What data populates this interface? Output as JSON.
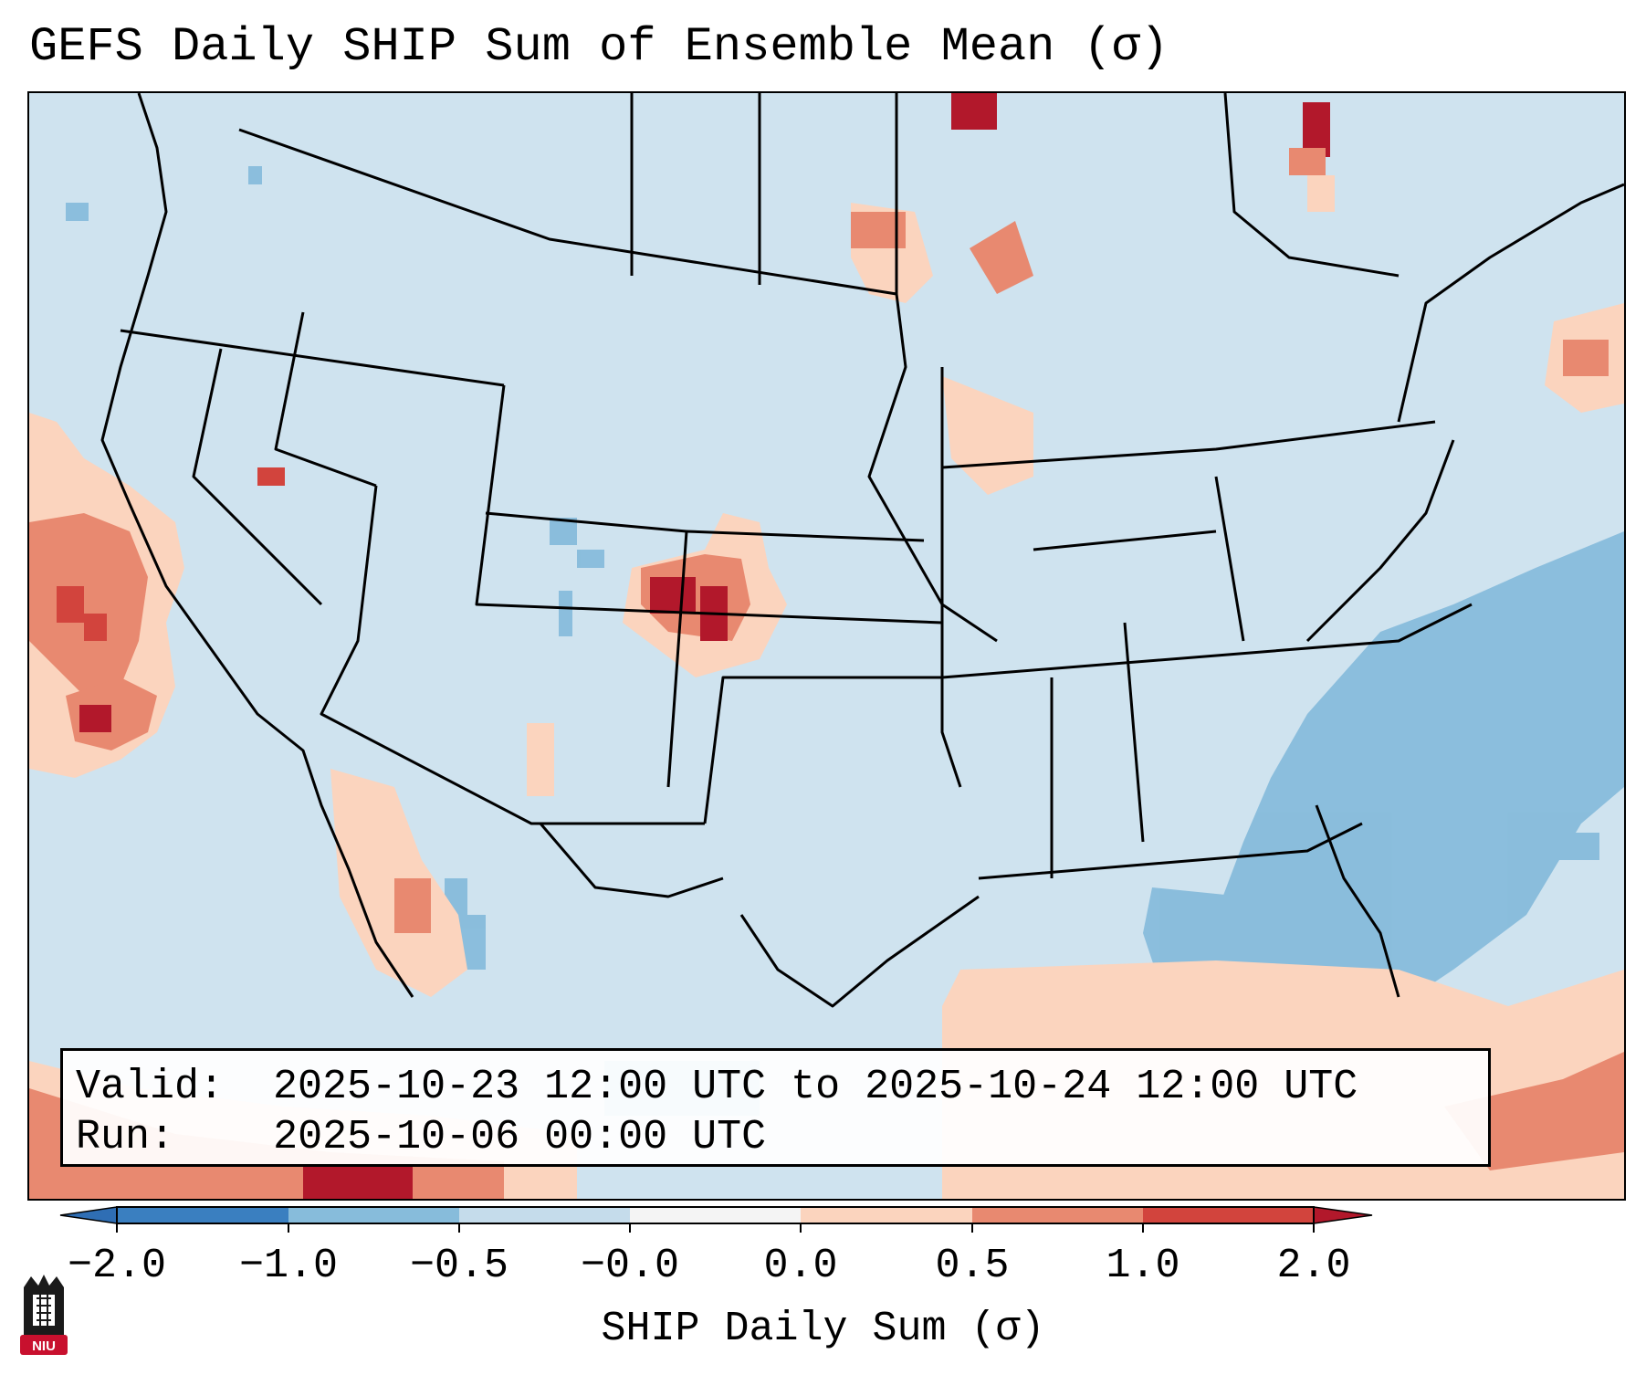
{
  "title": "GEFS Daily SHIP Sum of Ensemble Mean (σ)",
  "info": {
    "valid_label": "Valid:",
    "valid_value": "2025-10-23 12:00 UTC to 2025-10-24 12:00 UTC",
    "run_label": "Run:",
    "run_value": "2025-10-06 00:00 UTC"
  },
  "colorbar": {
    "label": "SHIP Daily Sum (σ)",
    "ticks": [
      "−2.0",
      "−1.0",
      "−0.5",
      "−0.0",
      "0.0",
      "0.5",
      "1.0",
      "2.0"
    ],
    "colors": [
      "#3a7fc0",
      "#87bcdb",
      "#c5dceb",
      "#f4f4f4",
      "#fbd4be",
      "#e88970",
      "#d2443d"
    ],
    "extend_low_color": "#2f6eb4",
    "extend_high_color": "#b2182b"
  },
  "logo": {
    "name": "NIU"
  },
  "colors": {
    "background_field": "#cfe3ef",
    "light_red": "#fbd4be",
    "medium_red": "#e88970",
    "strong_red": "#d2443d",
    "dark_red": "#b2182b",
    "light_blue": "#87bcdb"
  }
}
